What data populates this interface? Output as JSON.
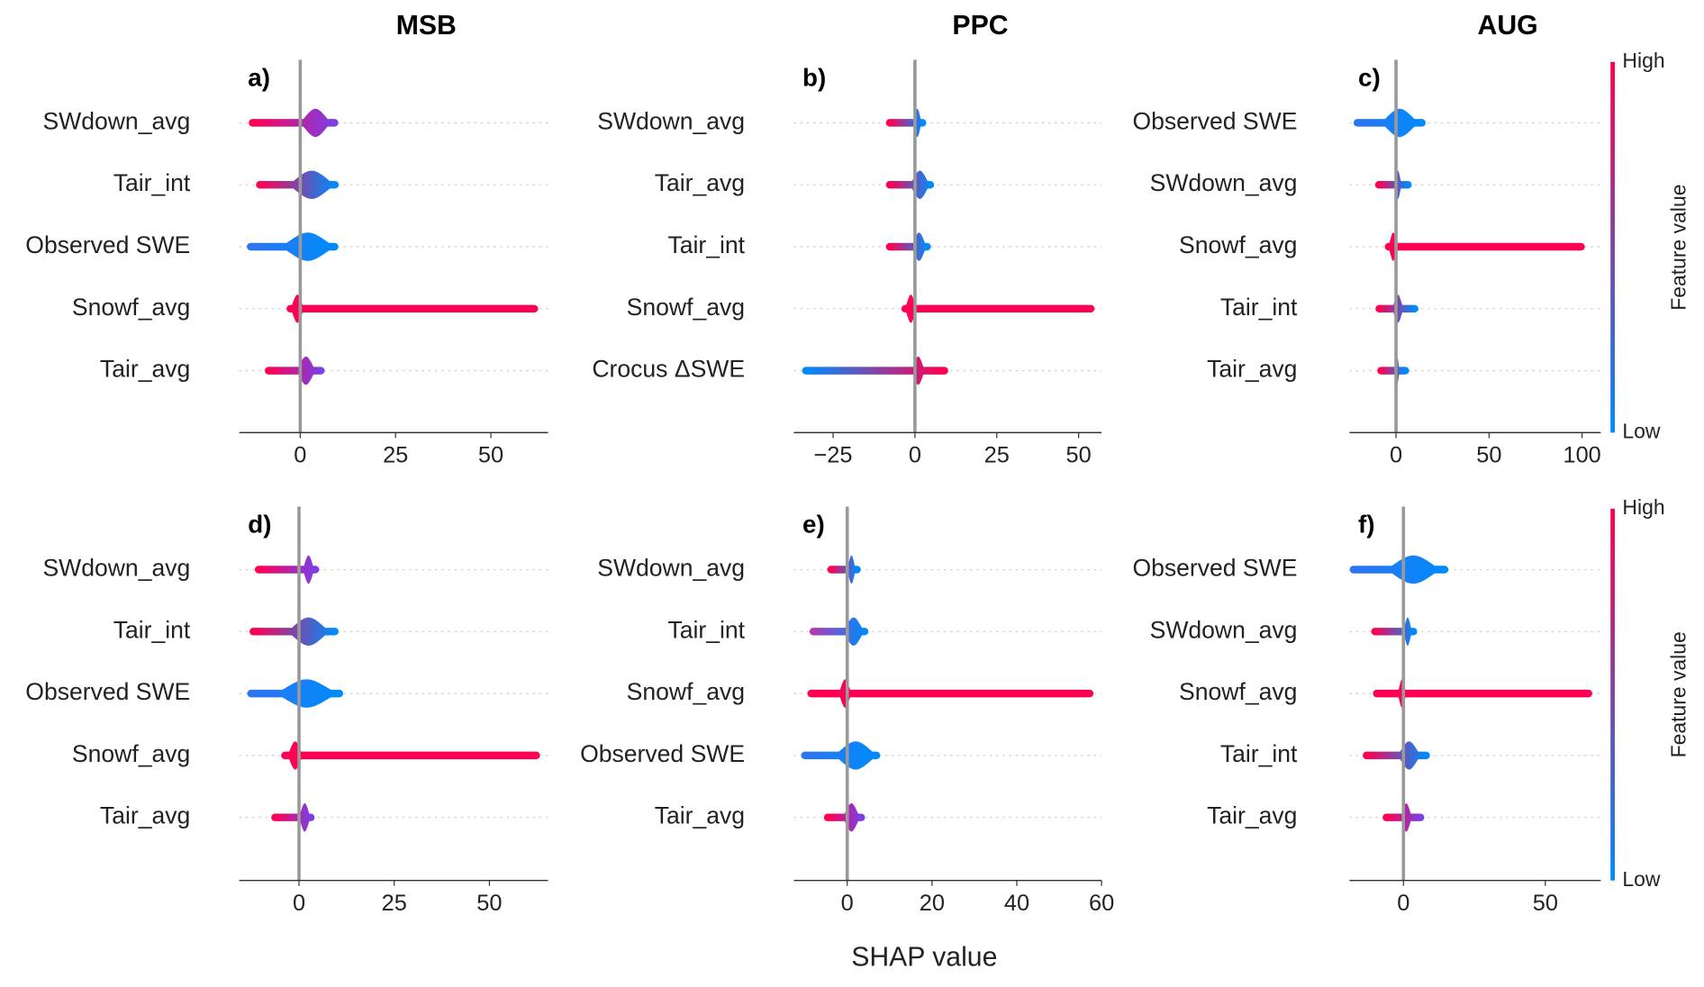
{
  "x_label": "SHAP value",
  "chart_data": [
    {
      "type": "shap-beeswarm",
      "title": "MSB",
      "panel_label": "a)",
      "xlim": [
        -16,
        65
      ],
      "xticks": [
        0,
        25,
        50
      ],
      "rows": [
        {
          "feature": "SWdown_avg",
          "min": -12.5,
          "max": 9,
          "body": [
            0,
            8
          ],
          "colors": [
            "#ff0052",
            "#7b3fe4"
          ]
        },
        {
          "feature": "Tair_int",
          "min": -10.6,
          "max": 9.1,
          "body": [
            -3,
            9
          ],
          "colors": [
            "#ff0052",
            "#008bfb"
          ]
        },
        {
          "feature": "Observed SWE",
          "min": -13,
          "max": 9,
          "body": [
            -5,
            9
          ],
          "colors": [
            "#2f74f0",
            "#008bfb"
          ]
        },
        {
          "feature": "Snowf_avg",
          "min": -2.6,
          "max": 61.4,
          "body": [
            -2.5,
            1
          ],
          "colors": [
            "#ff0052",
            "#ff0052"
          ]
        },
        {
          "feature": "Tair_avg",
          "min": -8.3,
          "max": 5.4,
          "body": [
            -1,
            4
          ],
          "colors": [
            "#ff0052",
            "#7b3fe4"
          ]
        }
      ]
    },
    {
      "type": "shap-beeswarm",
      "title": "PPC",
      "panel_label": "b)",
      "xlim": [
        -37,
        57
      ],
      "xticks": [
        {
          "value": -25,
          "label": "−25"
        },
        0,
        25,
        50
      ],
      "rows": [
        {
          "feature": "SWdown_avg",
          "min": -7.7,
          "max": 2.3,
          "body": [
            -0.5,
            2
          ],
          "colors": [
            "#ff0052",
            "#008bfb"
          ]
        },
        {
          "feature": "Tair_avg",
          "min": -7.7,
          "max": 4.7,
          "body": [
            -1.5,
            4.5
          ],
          "colors": [
            "#ff0052",
            "#008bfb"
          ]
        },
        {
          "feature": "Tair_int",
          "min": -7.7,
          "max": 3.7,
          "body": [
            -1,
            3.5
          ],
          "colors": [
            "#ff0052",
            "#008bfb"
          ]
        },
        {
          "feature": "Snowf_avg",
          "min": -3,
          "max": 53.7,
          "body": [
            -3,
            0.5
          ],
          "colors": [
            "#ff0052",
            "#ff0052"
          ]
        },
        {
          "feature": "Crocus ΔSWE",
          "min": -33.3,
          "max": 9,
          "body": [
            -1,
            3
          ],
          "colors": [
            "#008bfb",
            "#ff0052"
          ]
        }
      ]
    },
    {
      "type": "shap-beeswarm",
      "title": "AUG",
      "panel_label": "c)",
      "xlim": [
        -25,
        110
      ],
      "xticks": [
        0,
        50,
        100
      ],
      "colorbar": {
        "high": "High",
        "low": "Low",
        "label": "Feature value",
        "colors": [
          "#008bfb",
          "#ff0052"
        ]
      },
      "rows": [
        {
          "feature": "Observed SWE",
          "min": -20.8,
          "max": 13.9,
          "body": [
            -8,
            12
          ],
          "colors": [
            "#2f74f0",
            "#008bfb"
          ]
        },
        {
          "feature": "SWdown_avg",
          "min": -9.2,
          "max": 6.4,
          "body": [
            -1,
            3
          ],
          "colors": [
            "#ff0052",
            "#008bfb"
          ]
        },
        {
          "feature": "Snowf_avg",
          "min": -4,
          "max": 99.4,
          "body": [
            -4,
            1
          ],
          "colors": [
            "#ff0052",
            "#ff0052"
          ]
        },
        {
          "feature": "Tair_int",
          "min": -9,
          "max": 10,
          "body": [
            -2,
            4
          ],
          "colors": [
            "#ff0052",
            "#008bfb"
          ]
        },
        {
          "feature": "Tair_avg",
          "min": -8,
          "max": 5,
          "body": [
            -1,
            2
          ],
          "colors": [
            "#ff0052",
            "#008bfb"
          ]
        }
      ]
    },
    {
      "type": "shap-beeswarm",
      "panel_label": "d)",
      "xlim": [
        -15.7,
        65.4
      ],
      "xticks": [
        0,
        25,
        50
      ],
      "rows": [
        {
          "feature": "SWdown_avg",
          "min": -10.6,
          "max": 4.3,
          "body": [
            1,
            4
          ],
          "colors": [
            "#ff0052",
            "#7b3fe4"
          ]
        },
        {
          "feature": "Tair_int",
          "min": -12,
          "max": 9.4,
          "body": [
            -3,
            8
          ],
          "colors": [
            "#ff0052",
            "#008bfb"
          ]
        },
        {
          "feature": "Observed SWE",
          "min": -12.6,
          "max": 10.6,
          "body": [
            -6,
            10
          ],
          "colors": [
            "#2f74f0",
            "#008bfb"
          ]
        },
        {
          "feature": "Snowf_avg",
          "min": -3.7,
          "max": 62.3,
          "body": [
            -3,
            1
          ],
          "colors": [
            "#ff0052",
            "#ff0052"
          ]
        },
        {
          "feature": "Tair_avg",
          "min": -6.3,
          "max": 3.1,
          "body": [
            0,
            3
          ],
          "colors": [
            "#ff0052",
            "#7b3fe4"
          ]
        }
      ]
    },
    {
      "type": "shap-beeswarm",
      "panel_label": "e)",
      "xlim": [
        -12.6,
        60
      ],
      "xticks": [
        0,
        20,
        40,
        60
      ],
      "rows": [
        {
          "feature": "SWdown_avg",
          "min": -3.8,
          "max": 2.3,
          "body": [
            0,
            2
          ],
          "colors": [
            "#ff0052",
            "#008bfb"
          ]
        },
        {
          "feature": "Tair_int",
          "min": -8,
          "max": 4.1,
          "body": [
            -1,
            4
          ],
          "colors": [
            "#b03ab0",
            "#008bfb"
          ]
        },
        {
          "feature": "Snowf_avg",
          "min": -8.5,
          "max": 57.2,
          "body": [
            -2,
            1
          ],
          "colors": [
            "#ff0052",
            "#ff0052"
          ]
        },
        {
          "feature": "Observed SWE",
          "min": -10,
          "max": 6.9,
          "body": [
            -3,
            7
          ],
          "colors": [
            "#2f74f0",
            "#008bfb"
          ]
        },
        {
          "feature": "Tair_avg",
          "min": -4.6,
          "max": 3.3,
          "body": [
            -1,
            3
          ],
          "colors": [
            "#ff0052",
            "#7b3fe4"
          ]
        }
      ]
    },
    {
      "type": "shap-beeswarm",
      "panel_label": "f)",
      "xlim": [
        -19,
        69.5
      ],
      "xticks": [
        0,
        50
      ],
      "colorbar": {
        "high": "High",
        "low": "Low",
        "label": "Feature value",
        "colors": [
          "#008bfb",
          "#ff0052"
        ]
      },
      "rows": [
        {
          "feature": "Observed SWE",
          "min": -17.6,
          "max": 14.5,
          "body": [
            -6,
            13
          ],
          "colors": [
            "#2f74f0",
            "#008bfb"
          ]
        },
        {
          "feature": "SWdown_avg",
          "min": -10,
          "max": 3.5,
          "body": [
            0,
            3
          ],
          "colors": [
            "#ff0052",
            "#008bfb"
          ]
        },
        {
          "feature": "Snowf_avg",
          "min": -9.4,
          "max": 65.2,
          "body": [
            -2,
            1
          ],
          "colors": [
            "#ff0052",
            "#ff0052"
          ]
        },
        {
          "feature": "Tair_int",
          "min": -13,
          "max": 8,
          "body": [
            -2,
            6
          ],
          "colors": [
            "#ff0052",
            "#008bfb"
          ]
        },
        {
          "feature": "Tair_avg",
          "min": -6,
          "max": 6,
          "body": [
            -1,
            3
          ],
          "colors": [
            "#ff0052",
            "#7b3fe4"
          ]
        }
      ]
    }
  ]
}
